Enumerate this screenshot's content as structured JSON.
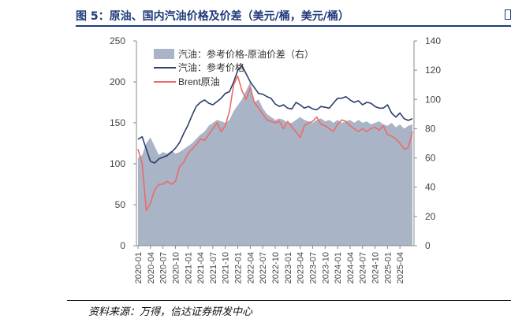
{
  "header": {
    "title": "图 5：原油、国内汽油价格及价差（美元/桶，美元/桶）"
  },
  "footer": {
    "source": "资料来源：万得，信达证券研发中心"
  },
  "chart_data": {
    "type": "area+line",
    "title": "图 5：原油、国内汽油价格及价差（美元/桶，美元/桶）",
    "xlabel": "",
    "ylabel_left": "",
    "ylabel_right": "",
    "y_left_lim": [
      0,
      250
    ],
    "y_left_ticks": [
      "0",
      "50",
      "100",
      "150",
      "200",
      "250"
    ],
    "y_right_lim": [
      0,
      140
    ],
    "y_right_ticks": [
      "0",
      "20",
      "40",
      "60",
      "80",
      "100",
      "120",
      "140"
    ],
    "x_ticks": [
      "2020-01",
      "2020-04",
      "2020-07",
      "2020-10",
      "2021-01",
      "2021-04",
      "2021-07",
      "2021-10",
      "2022-01",
      "2022-04",
      "2022-07",
      "2022-10",
      "2023-01",
      "2023-04",
      "2023-07",
      "2023-10",
      "2024-01",
      "2024-04",
      "2024-07",
      "2024-10",
      "2025-01",
      "2025-04"
    ],
    "x_range": [
      "2020-01",
      "2025-07"
    ],
    "legend_position": "top-left",
    "series": [
      {
        "name": "汽油：参考价格-原油价差（右）",
        "axis": "right",
        "type": "area",
        "color": "#a9b4c6",
        "x": [
          0,
          1,
          2,
          3,
          4,
          5,
          6,
          7,
          8,
          9,
          10,
          11,
          12,
          13,
          14,
          15,
          16,
          17,
          18,
          19,
          20,
          21,
          22,
          23,
          24,
          25,
          26,
          27,
          28,
          29,
          30,
          31,
          32,
          33,
          34,
          35,
          36,
          37,
          38,
          39,
          40,
          41,
          42,
          43,
          44,
          45,
          46,
          47,
          48,
          49,
          50,
          51,
          52,
          53,
          54,
          55,
          56,
          57,
          58,
          59,
          60,
          61,
          62,
          63,
          64,
          65,
          66
        ],
        "values": [
          60,
          62,
          70,
          74,
          68,
          62,
          64,
          63,
          65,
          63,
          64,
          66,
          68,
          70,
          73,
          76,
          78,
          82,
          84,
          86,
          85,
          84,
          86,
          92,
          96,
          100,
          106,
          112,
          98,
          100,
          94,
          90,
          88,
          86,
          87,
          86,
          84,
          84,
          86,
          88,
          86,
          85,
          84,
          86,
          87,
          85,
          86,
          84,
          86,
          84,
          85,
          86,
          84,
          86,
          84,
          85,
          83,
          84,
          85,
          83,
          82,
          84,
          81,
          83,
          80,
          82,
          83
        ]
      },
      {
        "name": "汽油：参考价格",
        "axis": "left",
        "type": "line",
        "color": "#2b3f6c",
        "x": [
          0,
          1,
          2,
          3,
          4,
          5,
          6,
          7,
          8,
          9,
          10,
          11,
          12,
          13,
          14,
          15,
          16,
          17,
          18,
          19,
          20,
          21,
          22,
          23,
          24,
          25,
          26,
          27,
          28,
          29,
          30,
          31,
          32,
          33,
          34,
          35,
          36,
          37,
          38,
          39,
          40,
          41,
          42,
          43,
          44,
          45,
          46,
          47,
          48,
          49,
          50,
          51,
          52,
          53,
          54,
          55,
          56,
          57,
          58,
          59,
          60,
          61,
          62,
          63,
          64,
          65,
          66
        ],
        "values": [
          130,
          133,
          118,
          103,
          101,
          106,
          108,
          110,
          114,
          119,
          126,
          137,
          147,
          159,
          170,
          175,
          178,
          174,
          172,
          176,
          180,
          186,
          188,
          200,
          214,
          220,
          210,
          200,
          193,
          186,
          185,
          182,
          180,
          173,
          170,
          172,
          168,
          167,
          175,
          172,
          168,
          170,
          167,
          166,
          170,
          169,
          168,
          174,
          180,
          180,
          182,
          178,
          175,
          177,
          172,
          175,
          174,
          170,
          168,
          168,
          172,
          162,
          157,
          162,
          155,
          153,
          155
        ]
      },
      {
        "name": "Brent原油",
        "axis": "right",
        "type": "line",
        "color": "#ee6a6a",
        "x": [
          0,
          1,
          2,
          3,
          4,
          5,
          6,
          7,
          8,
          9,
          10,
          11,
          12,
          13,
          14,
          15,
          16,
          17,
          18,
          19,
          20,
          21,
          22,
          23,
          24,
          25,
          26,
          27,
          28,
          29,
          30,
          31,
          32,
          33,
          34,
          35,
          36,
          37,
          38,
          39,
          40,
          41,
          42,
          43,
          44,
          45,
          46,
          47,
          48,
          49,
          50,
          51,
          52,
          53,
          54,
          55,
          56,
          57,
          58,
          59,
          60,
          61,
          62,
          63,
          64,
          65,
          66
        ],
        "values": [
          66,
          56,
          24,
          29,
          38,
          42,
          42,
          44,
          42,
          44,
          54,
          57,
          63,
          66,
          69,
          73,
          72,
          76,
          80,
          84,
          78,
          82,
          92,
          110,
          116,
          106,
          100,
          108,
          98,
          94,
          90,
          86,
          85,
          84,
          85,
          80,
          85,
          81,
          78,
          74,
          82,
          84,
          85,
          88,
          83,
          82,
          80,
          78,
          83,
          86,
          85,
          82,
          80,
          78,
          80,
          78,
          80,
          81,
          79,
          82,
          76,
          75,
          73,
          70,
          66,
          67,
          78
        ]
      }
    ]
  },
  "colors": {
    "title": "#1f3a7a",
    "area": "#a9b4c6",
    "gasoline": "#2b3f6c",
    "brent": "#ee6a6a",
    "axis": "#888888",
    "tick_text": "#444444"
  },
  "legend": {
    "area_label": "汽油：参考价格-原油价差（右）",
    "gasoline_label": "汽油：参考价格",
    "brent_label": "Brent原油"
  }
}
